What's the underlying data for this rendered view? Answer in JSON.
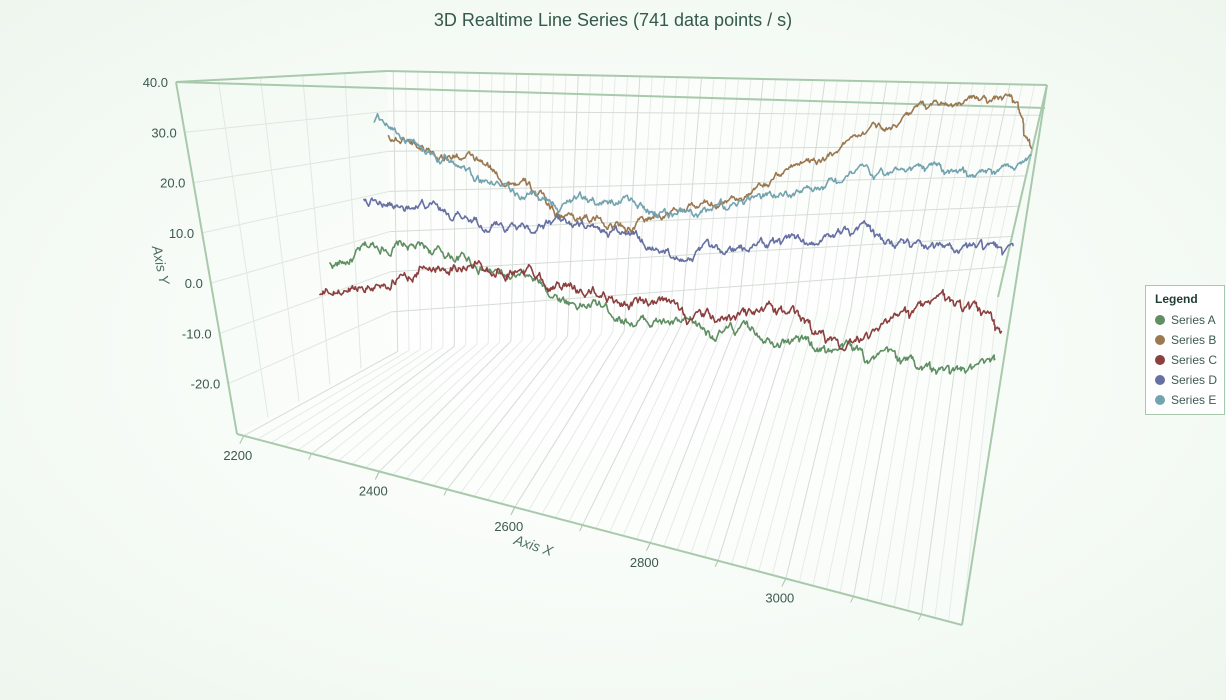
{
  "title": "3D Realtime Line Series (741 data points / s)",
  "legend": {
    "title": "Legend",
    "items": [
      {
        "name": "Series A",
        "color": "#5f8f63"
      },
      {
        "name": "Series B",
        "color": "#9b7850"
      },
      {
        "name": "Series C",
        "color": "#8c3f3f"
      },
      {
        "name": "Series D",
        "color": "#6770a3"
      },
      {
        "name": "Series E",
        "color": "#74a3b0"
      }
    ]
  },
  "chart_data": {
    "type": "line",
    "title": "3D Realtime Line Series (741 data points / s)",
    "xlabel": "Axis X",
    "ylabel": "Axis Y",
    "xlim": [
      2190,
      3260
    ],
    "ylim": [
      -30,
      40
    ],
    "x_ticks": [
      "2200",
      "2400",
      "2600",
      "2800",
      "3000"
    ],
    "y_ticks": [
      "40.0",
      "30.0",
      "20.0",
      "10.0",
      "0.0",
      "-10.0",
      "-20.0"
    ],
    "grid": true,
    "legend_position": "right",
    "series": [
      {
        "name": "Series A",
        "color": "#5f8f63",
        "x": [
          2200,
          2300,
          2400,
          2500,
          2600,
          2700,
          2800,
          2900,
          3000,
          3100,
          3200,
          3260
        ],
        "y": [
          -3,
          2,
          0,
          -5,
          -9,
          -12,
          -14,
          -13,
          -16,
          -18,
          -20,
          -19
        ]
      },
      {
        "name": "Series B",
        "color": "#9b7850",
        "x": [
          2200,
          2300,
          2400,
          2500,
          2600,
          2700,
          2800,
          2900,
          3000,
          3100,
          3200,
          3260
        ],
        "y": [
          24,
          20,
          13,
          3,
          0,
          4,
          8,
          18,
          28,
          35,
          36,
          21
        ]
      },
      {
        "name": "Series C",
        "color": "#8c3f3f",
        "x": [
          2200,
          2300,
          2400,
          2500,
          2600,
          2700,
          2800,
          2900,
          3000,
          3100,
          3200,
          3260
        ],
        "y": [
          -9,
          -5,
          0,
          0,
          -4,
          -6,
          -9,
          -6,
          -10,
          -5,
          -2,
          -8
        ]
      },
      {
        "name": "Series D",
        "color": "#6770a3",
        "x": [
          2200,
          2300,
          2400,
          2500,
          2600,
          2700,
          2800,
          2900,
          3000,
          3100,
          3200,
          3260
        ],
        "y": [
          10,
          7,
          4,
          4,
          2,
          -2,
          -3,
          0,
          3,
          0,
          -2,
          -4
        ]
      },
      {
        "name": "Series E",
        "color": "#74a3b0",
        "x": [
          2200,
          2300,
          2400,
          2500,
          2600,
          2700,
          2800,
          2900,
          3000,
          3100,
          3200,
          3260
        ],
        "y": [
          28,
          20,
          12,
          8,
          8,
          4,
          7,
          12,
          15,
          16,
          15,
          19
        ]
      }
    ]
  }
}
